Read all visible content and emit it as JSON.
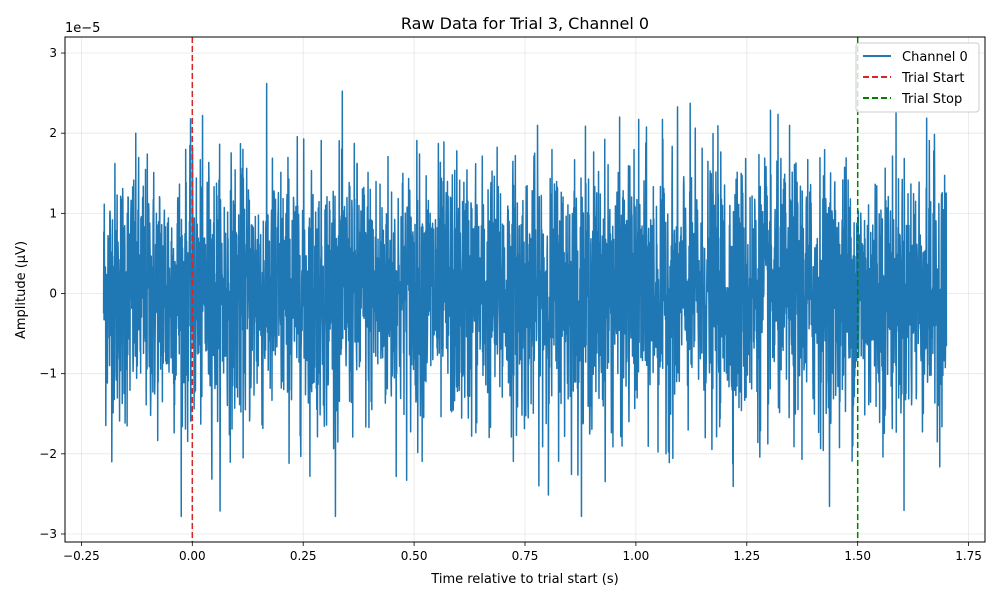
{
  "chart_data": {
    "type": "line",
    "title": "Raw Data for Trial 3, Channel 0",
    "xlabel": "Time relative to trial start (s)",
    "ylabel": "Amplitude (µV)",
    "offset_text": "1e−5",
    "xlim": [
      -0.2,
      1.7
    ],
    "ylim": [
      -3.1e-05,
      3.2e-05
    ],
    "x_ticks": [
      -0.25,
      0.0,
      0.25,
      0.5,
      0.75,
      1.0,
      1.25,
      1.5,
      1.75
    ],
    "x_tick_labels": [
      "−0.25",
      "0.00",
      "0.25",
      "0.50",
      "0.75",
      "1.00",
      "1.25",
      "1.50",
      "1.75"
    ],
    "y_ticks": [
      -3e-05,
      -2e-05,
      -1e-05,
      0,
      1e-05,
      2e-05,
      3e-05
    ],
    "y_tick_labels": [
      "−3",
      "−2",
      "−1",
      "0",
      "1",
      "2",
      "3"
    ],
    "grid": true,
    "legend_position": "top-right",
    "series": [
      {
        "name": "Channel 0",
        "color": "#1f77b4",
        "kind": "noise-signal",
        "x_start": -0.2,
        "x_end": 1.7,
        "approx_std": 8e-06,
        "approx_min": -2.78e-05,
        "approx_max": 2.9e-05
      }
    ],
    "vlines": [
      {
        "name": "Trial Start",
        "x": 0.0,
        "color": "#d62728",
        "style": "dashed"
      },
      {
        "name": "Trial Stop",
        "x": 1.5,
        "color": "#008000",
        "style": "dashed"
      }
    ]
  }
}
